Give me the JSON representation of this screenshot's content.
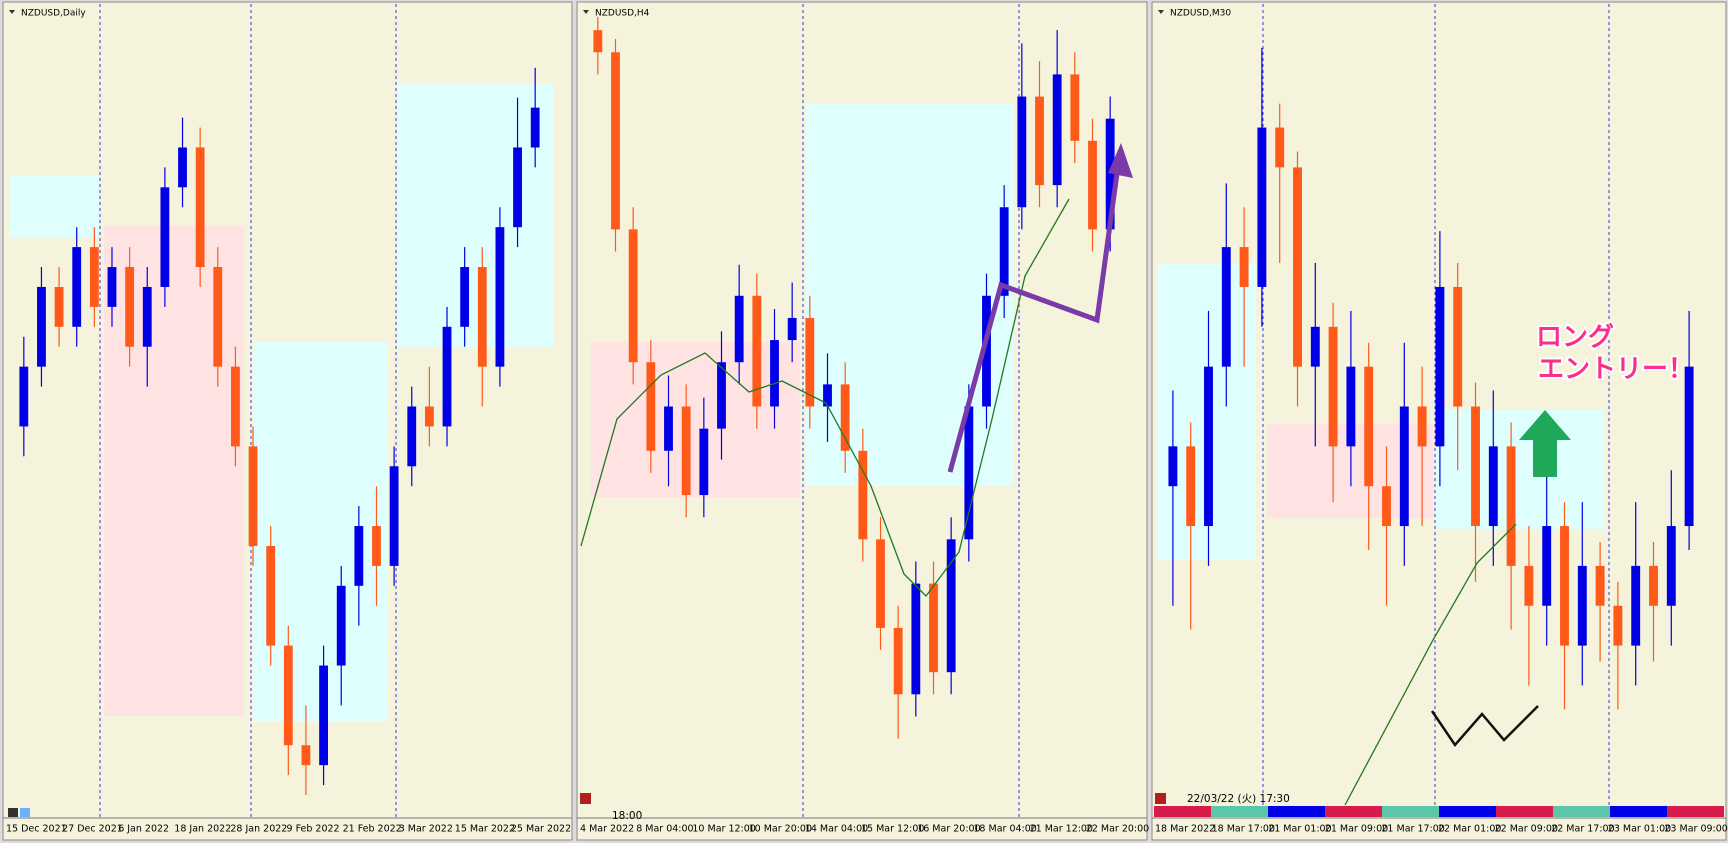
{
  "chart_data": [
    {
      "type": "candlestick",
      "title": "NZDUSD,Daily",
      "up_color": "#0000e6",
      "down_color": "#ff5a1a",
      "ylim": [
        0.66,
        0.7
      ],
      "x_labels": [
        "15 Dec 2021",
        "27 Dec 2021",
        "6 Jan 2022",
        "18 Jan 2022",
        "28 Jan 2022",
        "9 Feb 2022",
        "21 Feb 2022",
        "3 Mar 2022",
        "15 Mar 2022",
        "25 Mar 2022"
      ],
      "ohlc": [
        [
          0.679,
          0.6835,
          0.6775,
          0.682
        ],
        [
          0.682,
          0.687,
          0.681,
          0.686
        ],
        [
          0.686,
          0.687,
          0.683,
          0.684
        ],
        [
          0.684,
          0.689,
          0.683,
          0.688
        ],
        [
          0.688,
          0.689,
          0.684,
          0.685
        ],
        [
          0.685,
          0.688,
          0.684,
          0.687
        ],
        [
          0.687,
          0.688,
          0.682,
          0.683
        ],
        [
          0.683,
          0.687,
          0.681,
          0.686
        ],
        [
          0.686,
          0.692,
          0.685,
          0.691
        ],
        [
          0.691,
          0.6945,
          0.69,
          0.693
        ],
        [
          0.693,
          0.694,
          0.686,
          0.687
        ],
        [
          0.687,
          0.688,
          0.681,
          0.682
        ],
        [
          0.682,
          0.683,
          0.677,
          0.678
        ],
        [
          0.678,
          0.679,
          0.672,
          0.673
        ],
        [
          0.673,
          0.674,
          0.667,
          0.668
        ],
        [
          0.668,
          0.669,
          0.6615,
          0.663
        ],
        [
          0.663,
          0.665,
          0.6605,
          0.662
        ],
        [
          0.662,
          0.668,
          0.661,
          0.667
        ],
        [
          0.667,
          0.672,
          0.665,
          0.671
        ],
        [
          0.671,
          0.675,
          0.669,
          0.674
        ],
        [
          0.674,
          0.676,
          0.67,
          0.672
        ],
        [
          0.672,
          0.678,
          0.671,
          0.677
        ],
        [
          0.677,
          0.681,
          0.676,
          0.68
        ],
        [
          0.68,
          0.682,
          0.678,
          0.679
        ],
        [
          0.679,
          0.685,
          0.678,
          0.684
        ],
        [
          0.684,
          0.688,
          0.683,
          0.687
        ],
        [
          0.687,
          0.688,
          0.68,
          0.682
        ],
        [
          0.682,
          0.69,
          0.681,
          0.689
        ],
        [
          0.689,
          0.6955,
          0.688,
          0.693
        ],
        [
          0.693,
          0.697,
          0.692,
          0.695
        ]
      ]
    },
    {
      "type": "candlestick",
      "title": "NZDUSD,H4",
      "up_color": "#0000e6",
      "down_color": "#ff5a1a",
      "ylim": [
        0.676,
        0.694
      ],
      "annotation": "18:00",
      "x_labels": [
        "4 Mar 2022",
        "8 Mar 04:00",
        "10 Mar 12:00",
        "10 Mar 20:00",
        "14 Mar 04:00",
        "15 Mar 12:00",
        "16 Mar 20:00",
        "18 Mar 04:00",
        "21 Mar 12:00",
        "22 Mar 20:00"
      ],
      "ohlc": [
        [
          0.6935,
          0.6938,
          0.6925,
          0.693
        ],
        [
          0.693,
          0.6933,
          0.6885,
          0.689
        ],
        [
          0.689,
          0.6895,
          0.6855,
          0.686
        ],
        [
          0.686,
          0.6865,
          0.6835,
          0.684
        ],
        [
          0.684,
          0.6857,
          0.6832,
          0.685
        ],
        [
          0.685,
          0.6855,
          0.6825,
          0.683
        ],
        [
          0.683,
          0.6852,
          0.6825,
          0.6845
        ],
        [
          0.6845,
          0.6867,
          0.6838,
          0.686
        ],
        [
          0.686,
          0.6882,
          0.6855,
          0.6875
        ],
        [
          0.6875,
          0.688,
          0.6845,
          0.685
        ],
        [
          0.685,
          0.6872,
          0.6845,
          0.6865
        ],
        [
          0.6865,
          0.6878,
          0.686,
          0.687
        ],
        [
          0.687,
          0.6875,
          0.6845,
          0.685
        ],
        [
          0.685,
          0.6862,
          0.6842,
          0.6855
        ],
        [
          0.6855,
          0.686,
          0.6835,
          0.684
        ],
        [
          0.684,
          0.6845,
          0.6815,
          0.682
        ],
        [
          0.682,
          0.6825,
          0.6795,
          0.68
        ],
        [
          0.68,
          0.6805,
          0.6775,
          0.6785
        ],
        [
          0.6785,
          0.6815,
          0.678,
          0.681
        ],
        [
          0.681,
          0.6815,
          0.6785,
          0.679
        ],
        [
          0.679,
          0.6825,
          0.6785,
          0.682
        ],
        [
          0.682,
          0.6855,
          0.6815,
          0.685
        ],
        [
          0.685,
          0.688,
          0.6845,
          0.6875
        ],
        [
          0.6875,
          0.69,
          0.687,
          0.6895
        ],
        [
          0.6895,
          0.6932,
          0.689,
          0.692
        ],
        [
          0.692,
          0.6928,
          0.6895,
          0.69
        ],
        [
          0.69,
          0.6935,
          0.6895,
          0.6925
        ],
        [
          0.6925,
          0.693,
          0.6905,
          0.691
        ],
        [
          0.691,
          0.6915,
          0.6885,
          0.689
        ],
        [
          0.689,
          0.692,
          0.6885,
          0.6915
        ]
      ]
    },
    {
      "type": "candlestick",
      "title": "NZDUSD,M30",
      "up_color": "#0000e6",
      "down_color": "#ff5a1a",
      "ylim": [
        0.684,
        0.694
      ],
      "annotation": "22/03/22 (火) 17:30",
      "callout": [
        "ロング",
        "エントリー！"
      ],
      "x_labels": [
        "18 Mar 2022",
        "18 Mar 17:00",
        "21 Mar 01:00",
        "21 Mar 09:00",
        "21 Mar 17:00",
        "22 Mar 01:00",
        "22 Mar 09:00",
        "22 Mar 17:00",
        "23 Mar 01:00",
        "23 Mar 09:00"
      ],
      "ohlc": [
        [
          0.688,
          0.6892,
          0.6865,
          0.6885
        ],
        [
          0.6885,
          0.6888,
          0.6862,
          0.6875
        ],
        [
          0.6875,
          0.6902,
          0.687,
          0.6895
        ],
        [
          0.6895,
          0.6918,
          0.689,
          0.691
        ],
        [
          0.691,
          0.6915,
          0.6895,
          0.6905
        ],
        [
          0.6905,
          0.6935,
          0.69,
          0.6925
        ],
        [
          0.6925,
          0.6928,
          0.6908,
          0.692
        ],
        [
          0.692,
          0.6922,
          0.689,
          0.6895
        ],
        [
          0.6895,
          0.6908,
          0.6885,
          0.69
        ],
        [
          0.69,
          0.6903,
          0.6878,
          0.6885
        ],
        [
          0.6885,
          0.6902,
          0.688,
          0.6895
        ],
        [
          0.6895,
          0.6898,
          0.6872,
          0.688
        ],
        [
          0.688,
          0.6885,
          0.6865,
          0.6875
        ],
        [
          0.6875,
          0.6898,
          0.687,
          0.689
        ],
        [
          0.689,
          0.6895,
          0.6875,
          0.6885
        ],
        [
          0.6885,
          0.6912,
          0.688,
          0.6905
        ],
        [
          0.6905,
          0.6908,
          0.6882,
          0.689
        ],
        [
          0.689,
          0.6893,
          0.6868,
          0.6875
        ],
        [
          0.6875,
          0.6892,
          0.687,
          0.6885
        ],
        [
          0.6885,
          0.6888,
          0.6862,
          0.687
        ],
        [
          0.687,
          0.6875,
          0.6855,
          0.6865
        ],
        [
          0.6865,
          0.6882,
          0.686,
          0.6875
        ],
        [
          0.6875,
          0.6878,
          0.6852,
          0.686
        ],
        [
          0.686,
          0.6878,
          0.6855,
          0.687
        ],
        [
          0.687,
          0.6873,
          0.6858,
          0.6865
        ],
        [
          0.6865,
          0.6868,
          0.6852,
          0.686
        ],
        [
          0.686,
          0.6878,
          0.6855,
          0.687
        ],
        [
          0.687,
          0.6873,
          0.6858,
          0.6865
        ],
        [
          0.6865,
          0.6882,
          0.686,
          0.6875
        ],
        [
          0.6875,
          0.6902,
          0.6872,
          0.6895
        ]
      ]
    }
  ]
}
